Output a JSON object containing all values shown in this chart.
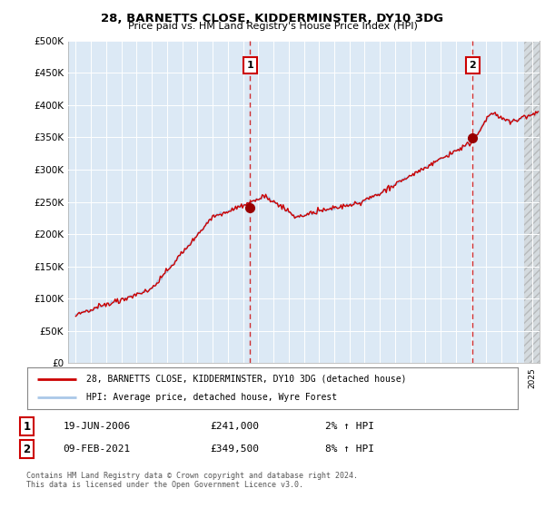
{
  "title1": "28, BARNETTS CLOSE, KIDDERMINSTER, DY10 3DG",
  "title2": "Price paid vs. HM Land Registry's House Price Index (HPI)",
  "ylim": [
    0,
    500000
  ],
  "xlim_start": 1995.0,
  "xlim_end": 2025.5,
  "sale1_x": 2006.47,
  "sale1_y": 241000,
  "sale2_x": 2021.1,
  "sale2_y": 349500,
  "legend_line1": "28, BARNETTS CLOSE, KIDDERMINSTER, DY10 3DG (detached house)",
  "legend_line2": "HPI: Average price, detached house, Wyre Forest",
  "annotation1_date": "19-JUN-2006",
  "annotation1_price": "£241,000",
  "annotation1_hpi": "2% ↑ HPI",
  "annotation2_date": "09-FEB-2021",
  "annotation2_price": "£349,500",
  "annotation2_hpi": "8% ↑ HPI",
  "footer": "Contains HM Land Registry data © Crown copyright and database right 2024.\nThis data is licensed under the Open Government Licence v3.0.",
  "bg_color": "#dce9f5",
  "hpi_color": "#aac8e8",
  "price_color": "#cc0000",
  "box_color": "#cc0000",
  "grid_color": "#ffffff",
  "hatch_area_start": 2024.5
}
